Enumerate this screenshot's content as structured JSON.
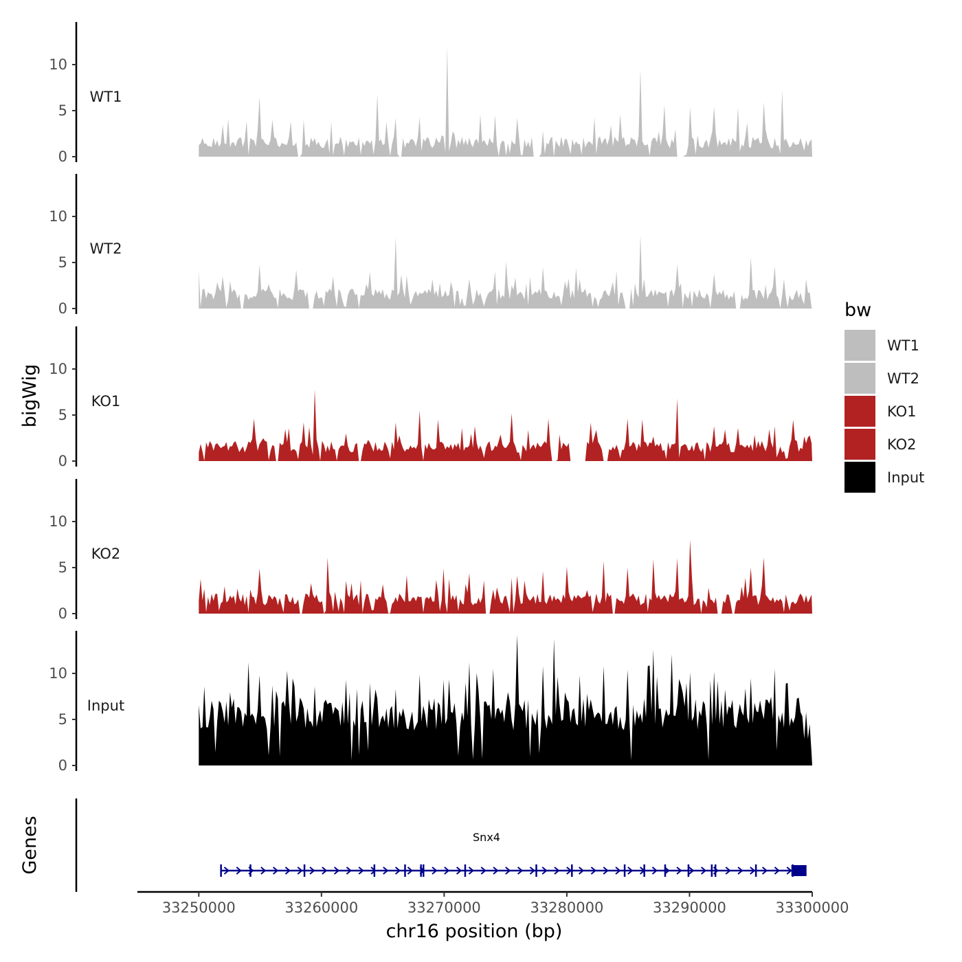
{
  "chart_data": {
    "type": "area",
    "title": "",
    "xlabel": "chr16 position (bp)",
    "ylabel": "bigWig",
    "gene_panel_label": "Genes",
    "xlim": [
      33245000,
      33300000
    ],
    "x_ticks": [
      33250000,
      33260000,
      33270000,
      33280000,
      33290000,
      33300000
    ],
    "x_tick_labels": [
      "33250000",
      "33260000",
      "33270000",
      "33280000",
      "33290000",
      "33300000"
    ],
    "ylim": [
      0,
      14
    ],
    "y_ticks": [
      0,
      5,
      10
    ],
    "y_tick_labels": [
      "0",
      "5",
      "10"
    ],
    "region": [
      33250000,
      33300000
    ],
    "legend": {
      "title": "bw",
      "position": "right",
      "entries": [
        {
          "label": "WT1",
          "color": "#bebebe"
        },
        {
          "label": "WT2",
          "color": "#bebebe"
        },
        {
          "label": "KO1",
          "color": "#b22222"
        },
        {
          "label": "KO2",
          "color": "#b22222"
        },
        {
          "label": "Input",
          "color": "#000000"
        }
      ]
    },
    "series": [
      {
        "name": "WT1",
        "color": "#bebebe",
        "peak_max": 12,
        "peaks": [
          [
            33252000,
            3.5
          ],
          [
            33255000,
            6.5
          ],
          [
            33256000,
            4
          ],
          [
            33258500,
            4
          ],
          [
            33264500,
            6.8
          ],
          [
            33266000,
            4.2
          ],
          [
            33268000,
            4.3
          ],
          [
            33270300,
            12
          ],
          [
            33273000,
            4.6
          ],
          [
            33274200,
            4.5
          ],
          [
            33276000,
            4.2
          ],
          [
            33278000,
            2.8
          ],
          [
            33282300,
            4.3
          ],
          [
            33284300,
            4.6
          ],
          [
            33286000,
            9.5
          ],
          [
            33288000,
            5.6
          ],
          [
            33290000,
            5.4
          ],
          [
            33292000,
            5.4
          ],
          [
            33294000,
            5.4
          ],
          [
            33296000,
            5.9
          ],
          [
            33297500,
            7.2
          ],
          [
            33299500,
            1.8
          ]
        ],
        "gaps": [
          [
            33258000,
            33258500
          ],
          [
            33266200,
            33266500
          ],
          [
            33277300,
            33278200
          ],
          [
            33282200,
            33282500
          ],
          [
            33289000,
            33289500
          ]
        ]
      },
      {
        "name": "WT2",
        "color": "#bebebe",
        "peak_max": 8,
        "peaks": [
          [
            33252000,
            3.5
          ],
          [
            33255000,
            4.8
          ],
          [
            33258000,
            4.2
          ],
          [
            33261000,
            3.5
          ],
          [
            33264000,
            4
          ],
          [
            33266000,
            7.8
          ],
          [
            33269000,
            3.2
          ],
          [
            33272000,
            3.2
          ],
          [
            33275000,
            5.1
          ],
          [
            33278000,
            4.5
          ],
          [
            33281000,
            3.2
          ],
          [
            33284000,
            4.1
          ],
          [
            33286000,
            8
          ],
          [
            33289000,
            4.8
          ],
          [
            33292000,
            3.8
          ],
          [
            33295000,
            5.6
          ],
          [
            33297000,
            4.6
          ],
          [
            33299500,
            3.2
          ]
        ],
        "gaps": [
          [
            33253400,
            33253700
          ],
          [
            33259000,
            33259300
          ],
          [
            33284800,
            33285200
          ],
          [
            33293800,
            33294100
          ]
        ]
      },
      {
        "name": "KO1",
        "color": "#b22222",
        "peak_max": 8,
        "peaks": [
          [
            33254500,
            4.6
          ],
          [
            33258500,
            4.2
          ],
          [
            33259500,
            7.8
          ],
          [
            33262000,
            3
          ],
          [
            33266000,
            4.2
          ],
          [
            33268000,
            5.5
          ],
          [
            33269500,
            4.5
          ],
          [
            33272500,
            3.8
          ],
          [
            33275500,
            5.2
          ],
          [
            33278500,
            4.6
          ],
          [
            33282000,
            4.2
          ],
          [
            33285000,
            4.6
          ],
          [
            33289000,
            6.8
          ],
          [
            33292000,
            3.8
          ],
          [
            33294000,
            3.6
          ],
          [
            33297000,
            3.8
          ],
          [
            33298500,
            4.5
          ]
        ],
        "gaps": [
          [
            33256300,
            33256500
          ],
          [
            33263000,
            33263200
          ],
          [
            33278800,
            33279200
          ],
          [
            33280300,
            33281600
          ],
          [
            33283000,
            33283300
          ]
        ]
      },
      {
        "name": "KO2",
        "color": "#b22222",
        "peak_max": 8,
        "peaks": [
          [
            33255000,
            4.9
          ],
          [
            33260500,
            6.1
          ],
          [
            33262500,
            3.3
          ],
          [
            33265000,
            3.2
          ],
          [
            33267000,
            4.2
          ],
          [
            33270000,
            4.9
          ],
          [
            33272000,
            4.4
          ],
          [
            33274000,
            2.6
          ],
          [
            33276000,
            4.1
          ],
          [
            33278000,
            4.6
          ],
          [
            33280000,
            5.1
          ],
          [
            33283000,
            5.7
          ],
          [
            33285000,
            5
          ],
          [
            33287000,
            5.9
          ],
          [
            33289000,
            6
          ],
          [
            33290000,
            8
          ],
          [
            33291500,
            2.8
          ],
          [
            33295000,
            5
          ],
          [
            33296000,
            6.1
          ],
          [
            33299500,
            2
          ]
        ],
        "gaps": [
          [
            33258200,
            33258500
          ],
          [
            33260200,
            33260400
          ],
          [
            33273400,
            33273700
          ],
          [
            33283700,
            33284000
          ],
          [
            33292300,
            33292700
          ],
          [
            33293400,
            33293700
          ]
        ]
      },
      {
        "name": "Input",
        "color": "#000000",
        "peak_max": 14.2,
        "peaks": [
          [
            33250500,
            8.6
          ],
          [
            33254000,
            11.2
          ],
          [
            33256000,
            8.7
          ],
          [
            33259500,
            8.6
          ],
          [
            33262000,
            9.3
          ],
          [
            33264000,
            9
          ],
          [
            33266000,
            8.3
          ],
          [
            33268000,
            9.9
          ],
          [
            33270000,
            9.3
          ],
          [
            33272000,
            11.2
          ],
          [
            33274000,
            10.5
          ],
          [
            33276000,
            14.2
          ],
          [
            33278000,
            10.8
          ],
          [
            33279000,
            13.8
          ],
          [
            33281000,
            9.8
          ],
          [
            33283000,
            10.8
          ],
          [
            33285000,
            10.4
          ],
          [
            33287000,
            12.6
          ],
          [
            33288500,
            12.1
          ],
          [
            33290000,
            10.1
          ],
          [
            33292000,
            10.2
          ],
          [
            33295000,
            9.5
          ],
          [
            33297000,
            10.5
          ],
          [
            33299500,
            5.8
          ]
        ],
        "gaps": []
      }
    ],
    "genes": [
      {
        "name": "Snx4",
        "start": 33251800,
        "end": 33299500,
        "strand": "+",
        "color": "#00008b",
        "exons": [
          33251800,
          33254200,
          33258600,
          33264300,
          33266800,
          33268100,
          33268300,
          33271700,
          33277500,
          33280400,
          33284700,
          33286300,
          33288000,
          33289900,
          33291800,
          33292100,
          33295400,
          33298400,
          33299200
        ]
      }
    ]
  }
}
